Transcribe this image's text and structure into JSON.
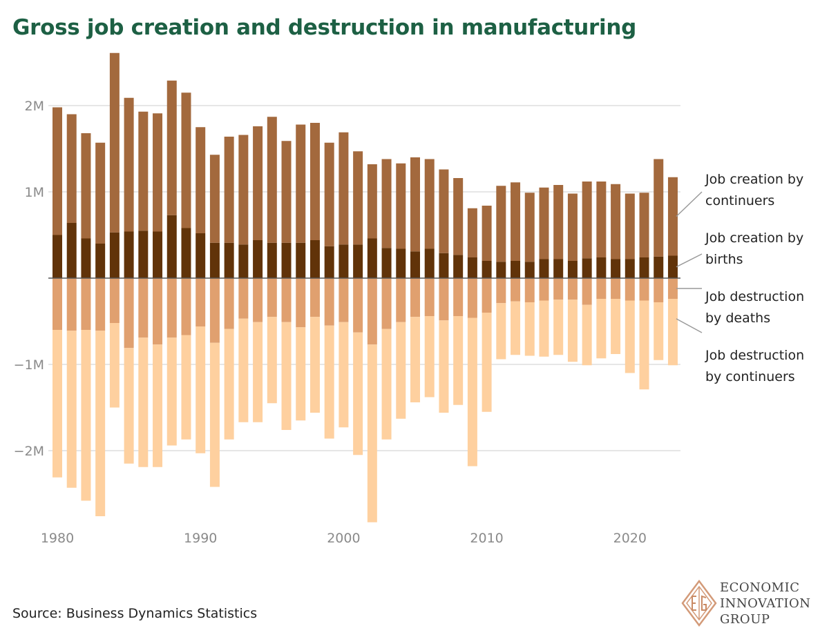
{
  "page_title": "Gross job creation and destruction in manufacturing",
  "source": "Source: Business Dynamics Statistics",
  "logo": {
    "lines": [
      "ECONOMIC",
      "INNOVATION",
      "GROUP"
    ],
    "icon": "eig-diamond-icon"
  },
  "colors": {
    "title": "#1d6044",
    "creation_continuers": "#a3693d",
    "creation_births": "#613309",
    "destruction_deaths": "#e0a06f",
    "destruction_continuers": "#fed09f",
    "grid": "#cccccc",
    "zero_line": "#555555",
    "leader": "#999999"
  },
  "chart_data": {
    "type": "bar",
    "stacked": true,
    "title": "Gross job creation and destruction in manufacturing",
    "x": [
      1980,
      1981,
      1982,
      1983,
      1984,
      1985,
      1986,
      1987,
      1988,
      1989,
      1990,
      1991,
      1992,
      1993,
      1994,
      1995,
      1996,
      1997,
      1998,
      1999,
      2000,
      2001,
      2002,
      2003,
      2004,
      2005,
      2006,
      2007,
      2008,
      2009,
      2010,
      2011,
      2012,
      2013,
      2014,
      2015,
      2016,
      2017,
      2018,
      2019,
      2020,
      2021,
      2022,
      2023
    ],
    "x_ticks": [
      1980,
      1990,
      2000,
      2010,
      2020
    ],
    "y_ticks": [
      {
        "value": 2000000,
        "label": "2M"
      },
      {
        "value": 1000000,
        "label": "1M"
      },
      {
        "value": -1000000,
        "label": "−1M"
      },
      {
        "value": -2000000,
        "label": "−2M"
      }
    ],
    "ylim": [
      -2850000,
      2650000
    ],
    "grid": true,
    "series": [
      {
        "name": "Job creation by births",
        "legend": [
          "Job creation by",
          "births"
        ],
        "values": [
          500000,
          640000,
          460000,
          400000,
          530000,
          540000,
          550000,
          540000,
          730000,
          580000,
          520000,
          410000,
          410000,
          390000,
          440000,
          410000,
          410000,
          410000,
          440000,
          370000,
          390000,
          390000,
          460000,
          350000,
          340000,
          310000,
          340000,
          290000,
          270000,
          240000,
          200000,
          190000,
          200000,
          190000,
          220000,
          220000,
          200000,
          230000,
          240000,
          220000,
          220000,
          240000,
          250000,
          260000
        ]
      },
      {
        "name": "Job creation by continuers",
        "legend": [
          "Job creation by",
          "continuers"
        ],
        "values": [
          1480000,
          1260000,
          1220000,
          1170000,
          2080000,
          1550000,
          1380000,
          1370000,
          1560000,
          1570000,
          1230000,
          1020000,
          1230000,
          1270000,
          1320000,
          1460000,
          1180000,
          1370000,
          1360000,
          1200000,
          1300000,
          1080000,
          860000,
          1030000,
          990000,
          1090000,
          1040000,
          970000,
          890000,
          570000,
          640000,
          880000,
          910000,
          800000,
          830000,
          860000,
          780000,
          890000,
          880000,
          870000,
          760000,
          750000,
          1130000,
          910000
        ]
      },
      {
        "name": "Job destruction by deaths",
        "legend": [
          "Job destruction",
          "by deaths"
        ],
        "values": [
          -600000,
          -610000,
          -600000,
          -610000,
          -520000,
          -810000,
          -690000,
          -770000,
          -690000,
          -660000,
          -560000,
          -750000,
          -590000,
          -470000,
          -510000,
          -450000,
          -510000,
          -570000,
          -450000,
          -550000,
          -510000,
          -630000,
          -770000,
          -590000,
          -510000,
          -450000,
          -440000,
          -490000,
          -440000,
          -460000,
          -400000,
          -290000,
          -270000,
          -280000,
          -260000,
          -250000,
          -250000,
          -310000,
          -240000,
          -240000,
          -260000,
          -260000,
          -280000,
          -240000
        ]
      },
      {
        "name": "Job destruction by continuers",
        "legend": [
          "Job destruction",
          "by continuers"
        ],
        "values": [
          -1710000,
          -1820000,
          -1980000,
          -2150000,
          -980000,
          -1340000,
          -1500000,
          -1420000,
          -1250000,
          -1210000,
          -1470000,
          -1670000,
          -1280000,
          -1200000,
          -1160000,
          -1000000,
          -1250000,
          -1080000,
          -1110000,
          -1310000,
          -1220000,
          -1420000,
          -2060000,
          -1280000,
          -1120000,
          -990000,
          -940000,
          -1070000,
          -1030000,
          -1720000,
          -1150000,
          -650000,
          -620000,
          -620000,
          -650000,
          -640000,
          -720000,
          -700000,
          -690000,
          -640000,
          -840000,
          -1030000,
          -670000,
          -770000
        ]
      }
    ]
  }
}
